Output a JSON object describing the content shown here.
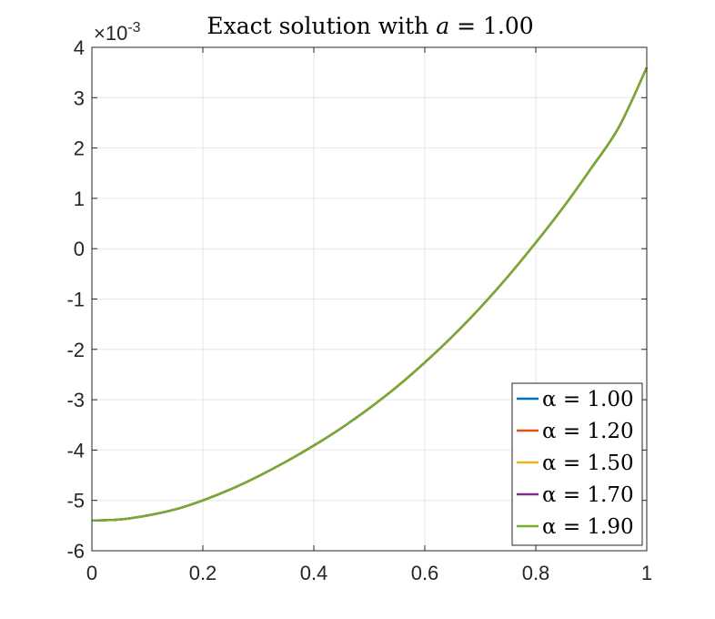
{
  "chart_data": {
    "type": "line",
    "title": "Exact solution with a = 1.00",
    "title_prefix": "Exact solution with",
    "title_var": "a",
    "title_rhs": "= 1.00",
    "y_exponent_label": "×10",
    "y_exponent_power": "-3",
    "xlim": [
      0,
      1
    ],
    "ylim": [
      -6,
      4
    ],
    "x_ticks": [
      "0",
      "0.2",
      "0.4",
      "0.6",
      "0.8",
      "1"
    ],
    "y_ticks": [
      "4",
      "3",
      "2",
      "1",
      "0",
      "-1",
      "-2",
      "-3",
      "-4",
      "-5",
      "-6"
    ],
    "grid": true,
    "legend_position": "bottom-right",
    "x": [
      0,
      0.05,
      0.1,
      0.15,
      0.2,
      0.25,
      0.3,
      0.35,
      0.4,
      0.45,
      0.5,
      0.55,
      0.6,
      0.65,
      0.7,
      0.75,
      0.8,
      0.85,
      0.9,
      0.95,
      1.0
    ],
    "series": [
      {
        "name": "α = 1.00",
        "color": "#0072BD",
        "values": [
          -5.4,
          -5.38,
          -5.3,
          -5.18,
          -5.0,
          -4.78,
          -4.52,
          -4.23,
          -3.91,
          -3.56,
          -3.17,
          -2.74,
          -2.26,
          -1.74,
          -1.17,
          -0.55,
          0.12,
          0.83,
          1.6,
          2.42,
          3.6
        ]
      },
      {
        "name": "α = 1.20",
        "color": "#D95319",
        "values": [
          -5.4,
          -5.38,
          -5.3,
          -5.18,
          -5.0,
          -4.78,
          -4.52,
          -4.23,
          -3.91,
          -3.56,
          -3.17,
          -2.74,
          -2.26,
          -1.74,
          -1.17,
          -0.55,
          0.12,
          0.83,
          1.6,
          2.42,
          3.6
        ]
      },
      {
        "name": "α = 1.50",
        "color": "#EDB120",
        "values": [
          -5.4,
          -5.38,
          -5.3,
          -5.18,
          -5.0,
          -4.78,
          -4.52,
          -4.23,
          -3.91,
          -3.56,
          -3.17,
          -2.74,
          -2.26,
          -1.74,
          -1.17,
          -0.55,
          0.12,
          0.83,
          1.6,
          2.42,
          3.6
        ]
      },
      {
        "name": "α = 1.70",
        "color": "#7E2F8E",
        "values": [
          -5.4,
          -5.38,
          -5.3,
          -5.18,
          -5.0,
          -4.78,
          -4.52,
          -4.23,
          -3.91,
          -3.56,
          -3.17,
          -2.74,
          -2.26,
          -1.74,
          -1.17,
          -0.55,
          0.12,
          0.83,
          1.6,
          2.42,
          3.6
        ]
      },
      {
        "name": "α = 1.90",
        "color": "#77AC30",
        "values": [
          -5.4,
          -5.38,
          -5.3,
          -5.18,
          -5.0,
          -4.78,
          -4.52,
          -4.23,
          -3.91,
          -3.56,
          -3.17,
          -2.74,
          -2.26,
          -1.74,
          -1.17,
          -0.55,
          0.12,
          0.83,
          1.6,
          2.42,
          3.6
        ]
      }
    ]
  }
}
